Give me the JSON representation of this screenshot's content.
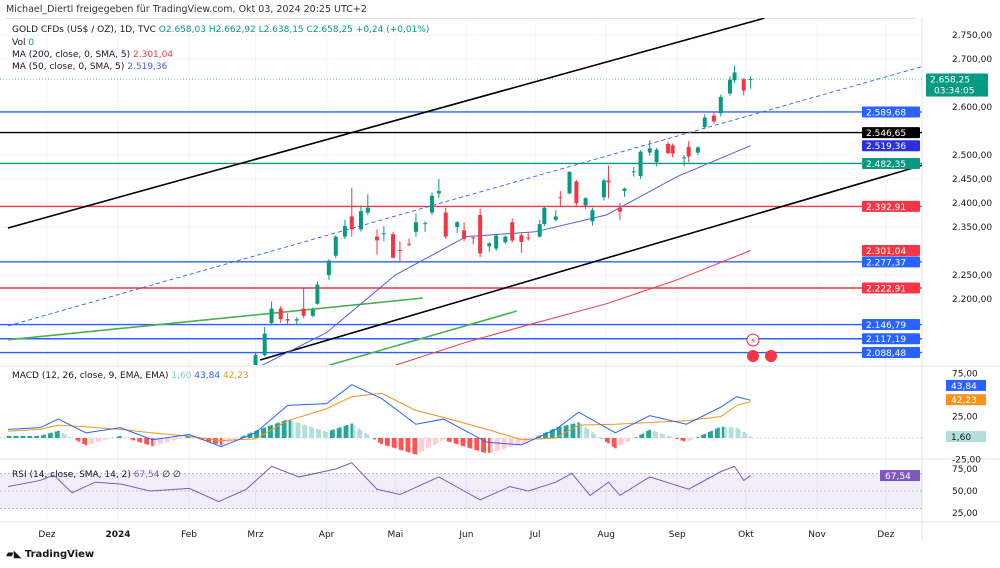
{
  "share_line": "Michael_Diertl freigegeben für TradingView.com, Okt 03, 2024 20:25 UTC+2",
  "legend": {
    "symbol": "GOLD CFDs (US$ / OZ), 1D, TVC",
    "open": "O2.658,03",
    "high": "H2.662,92",
    "low": "L2.638,15",
    "close": "C2.658,25",
    "change": "+0,24 (+0,01%)",
    "vol_label": "Vol",
    "vol_value": "0",
    "ma200_label": "MA (200, close, 0, SMA, 5)",
    "ma200_value": "2.301,04",
    "ma50_label": "MA (50, close, 0, SMA, 5)",
    "ma50_value": "2.519,36"
  },
  "macd_legend": {
    "label": "MACD (12, 26, close, 9, EMA, EMA)",
    "hist": "1,60",
    "macd": "43,84",
    "signal": "42,23"
  },
  "rsi_legend": {
    "label": "RSI (14, close, SMA, 14, 2)",
    "value": "67,54",
    "extra": "∅ ∅"
  },
  "countdown": "03:34:05",
  "branding": "TradingView",
  "colors": {
    "up": "#089981",
    "down": "#f23645",
    "ma50": "#5b5bd6",
    "ma200": "#f23645",
    "macd": "#2962ff",
    "signal": "#f7931a",
    "rsi": "#7e57c2"
  },
  "chart_data": [
    {
      "type": "candlestick",
      "title": "GOLD CFDs (US$ / OZ), 1D, TVC",
      "ylim": [
        2062,
        2787
      ],
      "y_ticks": [
        "2.750,00",
        "2.700,00",
        "2.600,00",
        "2.500,00",
        "2.450,00",
        "2.400,00",
        "2.350,00",
        "2.250,00",
        "2.200,00"
      ],
      "y_tick_values": [
        2750,
        2700,
        2600,
        2500,
        2450,
        2400,
        2350,
        2250,
        2200
      ],
      "x_ticks": [
        "Dez",
        "2024",
        "Feb",
        "Mrz",
        "Apr",
        "Mai",
        "Jun",
        "Jul",
        "Aug",
        "Sep",
        "Okt",
        "Nov",
        "Dez"
      ],
      "x_tick_dates": [
        "2023-12-01",
        "2024-01-01",
        "2024-02-01",
        "2024-03-01",
        "2024-04-01",
        "2024-05-01",
        "2024-06-01",
        "2024-07-01",
        "2024-08-01",
        "2024-09-01",
        "2024-10-01",
        "2024-11-01",
        "2024-12-01"
      ],
      "candles": [
        [
          "2024-03-01",
          2044,
          2088,
          2040,
          2083
        ],
        [
          "2024-03-05",
          2083,
          2142,
          2080,
          2128
        ],
        [
          "2024-03-08",
          2150,
          2195,
          2145,
          2180
        ],
        [
          "2024-03-12",
          2180,
          2185,
          2150,
          2158
        ],
        [
          "2024-03-15",
          2158,
          2170,
          2148,
          2155
        ],
        [
          "2024-03-19",
          2155,
          2162,
          2146,
          2158
        ],
        [
          "2024-03-22",
          2180,
          2222,
          2160,
          2165
        ],
        [
          "2024-03-26",
          2165,
          2182,
          2162,
          2178
        ],
        [
          "2024-03-28",
          2190,
          2236,
          2188,
          2230
        ],
        [
          "2024-04-02",
          2250,
          2283,
          2240,
          2280
        ],
        [
          "2024-04-05",
          2290,
          2332,
          2285,
          2330
        ],
        [
          "2024-04-09",
          2330,
          2365,
          2325,
          2352
        ],
        [
          "2024-04-12",
          2372,
          2432,
          2330,
          2345
        ],
        [
          "2024-04-16",
          2345,
          2395,
          2340,
          2383
        ],
        [
          "2024-04-19",
          2380,
          2418,
          2375,
          2390
        ],
        [
          "2024-04-23",
          2330,
          2345,
          2292,
          2322
        ],
        [
          "2024-04-26",
          2335,
          2352,
          2320,
          2337
        ],
        [
          "2024-04-30",
          2335,
          2340,
          2285,
          2286
        ],
        [
          "2024-05-03",
          2302,
          2320,
          2277,
          2300
        ],
        [
          "2024-05-07",
          2315,
          2326,
          2310,
          2314
        ],
        [
          "2024-05-10",
          2340,
          2378,
          2330,
          2360
        ],
        [
          "2024-05-14",
          2358,
          2362,
          2340,
          2358
        ],
        [
          "2024-05-17",
          2380,
          2422,
          2375,
          2415
        ],
        [
          "2024-05-20",
          2420,
          2450,
          2410,
          2425
        ],
        [
          "2024-05-23",
          2380,
          2390,
          2325,
          2330
        ],
        [
          "2024-05-28",
          2350,
          2362,
          2338,
          2360
        ],
        [
          "2024-05-31",
          2343,
          2360,
          2320,
          2325
        ],
        [
          "2024-06-04",
          2328,
          2330,
          2314,
          2326
        ],
        [
          "2024-06-07",
          2375,
          2388,
          2287,
          2295
        ],
        [
          "2024-06-11",
          2310,
          2318,
          2298,
          2316
        ],
        [
          "2024-06-14",
          2305,
          2335,
          2300,
          2332
        ],
        [
          "2024-06-18",
          2318,
          2332,
          2315,
          2330
        ],
        [
          "2024-06-21",
          2360,
          2368,
          2318,
          2322
        ],
        [
          "2024-06-25",
          2333,
          2336,
          2296,
          2319
        ],
        [
          "2024-06-28",
          2328,
          2338,
          2322,
          2326
        ],
        [
          "2024-07-03",
          2330,
          2365,
          2328,
          2356
        ],
        [
          "2024-07-05",
          2356,
          2392,
          2352,
          2390
        ],
        [
          "2024-07-10",
          2365,
          2385,
          2362,
          2372
        ],
        [
          "2024-07-12",
          2412,
          2425,
          2394,
          2410
        ],
        [
          "2024-07-16",
          2420,
          2466,
          2418,
          2465
        ],
        [
          "2024-07-19",
          2445,
          2448,
          2395,
          2400
        ],
        [
          "2024-07-23",
          2395,
          2412,
          2388,
          2410
        ],
        [
          "2024-07-26",
          2362,
          2390,
          2353,
          2385
        ],
        [
          "2024-07-31",
          2412,
          2450,
          2405,
          2447
        ],
        [
          "2024-08-02",
          2447,
          2478,
          2410,
          2443
        ],
        [
          "2024-08-07",
          2390,
          2400,
          2365,
          2382
        ],
        [
          "2024-08-09",
          2425,
          2432,
          2413,
          2430
        ],
        [
          "2024-08-13",
          2466,
          2475,
          2455,
          2466
        ],
        [
          "2024-08-16",
          2456,
          2510,
          2450,
          2507
        ],
        [
          "2024-08-20",
          2505,
          2531,
          2498,
          2514
        ],
        [
          "2024-08-23",
          2485,
          2515,
          2476,
          2511
        ],
        [
          "2024-08-28",
          2523,
          2528,
          2502,
          2504
        ],
        [
          "2024-08-30",
          2520,
          2524,
          2495,
          2503
        ],
        [
          "2024-09-04",
          2493,
          2500,
          2477,
          2495
        ],
        [
          "2024-09-06",
          2517,
          2529,
          2485,
          2497
        ],
        [
          "2024-09-10",
          2505,
          2518,
          2500,
          2516
        ],
        [
          "2024-09-13",
          2558,
          2585,
          2555,
          2578
        ],
        [
          "2024-09-17",
          2582,
          2590,
          2565,
          2570
        ],
        [
          "2024-09-20",
          2587,
          2626,
          2580,
          2621
        ],
        [
          "2024-09-24",
          2628,
          2664,
          2624,
          2657
        ],
        [
          "2024-09-26",
          2656,
          2686,
          2650,
          2672
        ],
        [
          "2024-09-30",
          2658,
          2660,
          2624,
          2634
        ],
        [
          "2024-10-03",
          2658.03,
          2662.92,
          2638.15,
          2658.25
        ]
      ],
      "ma50": [
        [
          "2024-03-01",
          2055
        ],
        [
          "2024-04-01",
          2130
        ],
        [
          "2024-05-01",
          2250
        ],
        [
          "2024-06-01",
          2330
        ],
        [
          "2024-07-01",
          2340
        ],
        [
          "2024-08-01",
          2375
        ],
        [
          "2024-09-01",
          2455
        ],
        [
          "2024-10-03",
          2519.36
        ]
      ],
      "ma200": [
        [
          "2024-05-01",
          2062
        ],
        [
          "2024-06-01",
          2110
        ],
        [
          "2024-07-01",
          2150
        ],
        [
          "2024-08-01",
          2190
        ],
        [
          "2024-09-01",
          2240
        ],
        [
          "2024-10-03",
          2301.04
        ]
      ],
      "levels": [
        {
          "price": 2589.68,
          "label": "2.589,68",
          "color": "#2962ff"
        },
        {
          "price": 2546.65,
          "label": "2.546,65",
          "color": "#000000"
        },
        {
          "price": 2482.35,
          "label": "2.482,35",
          "color": "#089981"
        },
        {
          "price": 2392.91,
          "label": "2.392,91",
          "color": "#f23645"
        },
        {
          "price": 2277.37,
          "label": "2.277,37",
          "color": "#2962ff"
        },
        {
          "price": 2222.91,
          "label": "2.222,91",
          "color": "#f23645"
        },
        {
          "price": 2146.79,
          "label": "2.146,79",
          "color": "#2962ff"
        },
        {
          "price": 2117.19,
          "label": "2.117,19",
          "color": "#2962ff"
        },
        {
          "price": 2088.48,
          "label": "2.088,48",
          "color": "#2962ff"
        }
      ],
      "price_tags": [
        {
          "price": 2658.25,
          "label": "2.658,25",
          "color": "#089981"
        },
        {
          "price": 2519.36,
          "label": "2.519,36",
          "color": "#2f2fe0"
        },
        {
          "price": 2301.04,
          "label": "2.301,04",
          "color": "#f23645"
        }
      ],
      "trendlines": [
        {
          "from": [
            "2023-11-14",
            2348
          ],
          "to": [
            "2024-10-09",
            2785
          ],
          "color": "#000000",
          "style": "solid"
        },
        {
          "from": [
            "2024-03-03",
            2073
          ],
          "to": [
            "2024-12-25",
            2490
          ],
          "color": "#000000",
          "style": "solid"
        },
        {
          "from": [
            "2023-11-14",
            2144
          ],
          "to": [
            "2024-12-27",
            2698
          ],
          "color": "#2962ff",
          "style": "dashed"
        },
        {
          "from": [
            "2023-11-14",
            2115
          ],
          "to": [
            "2024-05-13",
            2202
          ],
          "color": "#4caf50",
          "style": "solid"
        },
        {
          "from": [
            "2024-04-02",
            2062
          ],
          "to": [
            "2024-06-23",
            2175
          ],
          "color": "#4caf50",
          "style": "solid"
        }
      ],
      "grid": true
    },
    {
      "type": "line",
      "title": "MACD (12, 26, close, 9, EMA, EMA)",
      "ylim": [
        -30,
        85
      ],
      "y_ticks": [
        "75,00",
        "25,00",
        "-25,00"
      ],
      "y_tick_values": [
        75,
        25,
        -25
      ],
      "tags": [
        {
          "label": "43,84",
          "color": "#2962ff",
          "value": 60
        },
        {
          "label": "42,23",
          "color": "#f7931a",
          "value": 48
        },
        {
          "label": "1,60",
          "color": "#b2dfdb",
          "value": 1.6
        }
      ],
      "series": [
        {
          "name": "MACD",
          "points": [
            [
              "2023-11-14",
              10
            ],
            [
              "2023-11-28",
              12
            ],
            [
              "2023-12-06",
              22
            ],
            [
              "2023-12-18",
              6
            ],
            [
              "2024-01-02",
              12
            ],
            [
              "2024-01-16",
              -2
            ],
            [
              "2024-02-01",
              4
            ],
            [
              "2024-02-15",
              -10
            ],
            [
              "2024-03-01",
              6
            ],
            [
              "2024-03-15",
              38
            ],
            [
              "2024-04-01",
              40
            ],
            [
              "2024-04-12",
              62
            ],
            [
              "2024-04-25",
              46
            ],
            [
              "2024-05-10",
              16
            ],
            [
              "2024-05-22",
              22
            ],
            [
              "2024-06-10",
              -5
            ],
            [
              "2024-06-25",
              -8
            ],
            [
              "2024-07-10",
              10
            ],
            [
              "2024-07-20",
              30
            ],
            [
              "2024-08-05",
              6
            ],
            [
              "2024-08-20",
              26
            ],
            [
              "2024-09-05",
              16
            ],
            [
              "2024-09-20",
              36
            ],
            [
              "2024-09-27",
              48
            ],
            [
              "2024-10-03",
              43.84
            ]
          ]
        },
        {
          "name": "Signal",
          "points": [
            [
              "2023-11-14",
              8
            ],
            [
              "2023-11-28",
              10
            ],
            [
              "2023-12-06",
              15
            ],
            [
              "2023-12-18",
              13
            ],
            [
              "2024-01-02",
              10
            ],
            [
              "2024-01-16",
              6
            ],
            [
              "2024-02-01",
              2
            ],
            [
              "2024-02-15",
              -3
            ],
            [
              "2024-03-01",
              -1
            ],
            [
              "2024-03-15",
              20
            ],
            [
              "2024-04-01",
              34
            ],
            [
              "2024-04-12",
              48
            ],
            [
              "2024-04-25",
              52
            ],
            [
              "2024-05-10",
              32
            ],
            [
              "2024-05-22",
              24
            ],
            [
              "2024-06-10",
              10
            ],
            [
              "2024-06-25",
              -2
            ],
            [
              "2024-07-10",
              0
            ],
            [
              "2024-07-20",
              15
            ],
            [
              "2024-08-05",
              16
            ],
            [
              "2024-08-20",
              18
            ],
            [
              "2024-09-05",
              20
            ],
            [
              "2024-09-20",
              25
            ],
            [
              "2024-09-27",
              38
            ],
            [
              "2024-10-03",
              42.23
            ]
          ]
        }
      ]
    },
    {
      "type": "line",
      "title": "RSI (14, close, SMA, 14, 2)",
      "ylim": [
        15,
        80
      ],
      "y_ticks": [
        "75,00",
        "50,00",
        "25,00"
      ],
      "y_tick_values": [
        75,
        50,
        25
      ],
      "band": [
        30,
        70
      ],
      "series": [
        {
          "name": "RSI",
          "points": [
            [
              "2023-11-14",
              55
            ],
            [
              "2023-11-28",
              62
            ],
            [
              "2023-12-04",
              68
            ],
            [
              "2023-12-12",
              48
            ],
            [
              "2023-12-22",
              60
            ],
            [
              "2024-01-02",
              58
            ],
            [
              "2024-01-15",
              50
            ],
            [
              "2024-02-01",
              53
            ],
            [
              "2024-02-14",
              38
            ],
            [
              "2024-02-26",
              52
            ],
            [
              "2024-03-08",
              78
            ],
            [
              "2024-03-20",
              66
            ],
            [
              "2024-04-05",
              75
            ],
            [
              "2024-04-12",
              82
            ],
            [
              "2024-04-23",
              52
            ],
            [
              "2024-05-03",
              46
            ],
            [
              "2024-05-20",
              66
            ],
            [
              "2024-05-31",
              50
            ],
            [
              "2024-06-07",
              40
            ],
            [
              "2024-06-20",
              55
            ],
            [
              "2024-06-28",
              50
            ],
            [
              "2024-07-10",
              60
            ],
            [
              "2024-07-17",
              70
            ],
            [
              "2024-07-25",
              45
            ],
            [
              "2024-08-02",
              60
            ],
            [
              "2024-08-07",
              45
            ],
            [
              "2024-08-20",
              66
            ],
            [
              "2024-09-06",
              52
            ],
            [
              "2024-09-20",
              72
            ],
            [
              "2024-09-26",
              78
            ],
            [
              "2024-09-30",
              62
            ],
            [
              "2024-10-03",
              67.54
            ]
          ]
        }
      ]
    }
  ]
}
